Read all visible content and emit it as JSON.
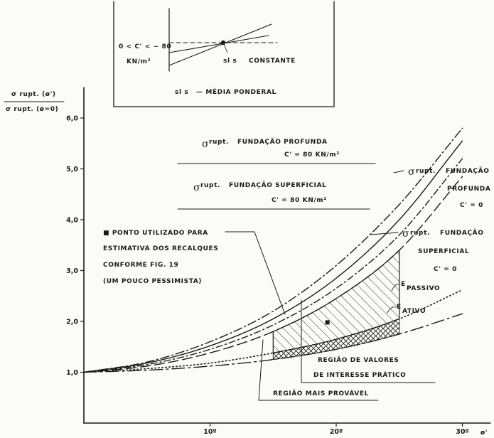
{
  "chart_data": {
    "type": "line",
    "title": "",
    "ylabel_num": "σ rupt. (ø')",
    "ylabel_den": "σ rupt. (ø=0)",
    "xlabel": "ø'",
    "xlim": [
      0,
      33
    ],
    "ylim": [
      0,
      6.5
    ],
    "x_ticks": [
      {
        "value": 10,
        "label": "10º"
      },
      {
        "value": 20,
        "label": "20º"
      },
      {
        "value": 30,
        "label": "30º"
      }
    ],
    "y_ticks": [
      {
        "value": 1,
        "label": "1,0"
      },
      {
        "value": 2,
        "label": "2,0"
      },
      {
        "value": 3,
        "label": "3,0"
      },
      {
        "value": 4,
        "label": "4,0"
      },
      {
        "value": 5,
        "label": "5,0"
      },
      {
        "value": 6,
        "label": "6,0"
      }
    ],
    "series": [
      {
        "key": "prof_c80",
        "style": "dashdot",
        "x": [
          0,
          5,
          10,
          15,
          20,
          25,
          30
        ],
        "y": [
          1.0,
          1.2,
          1.6,
          2.2,
          3.1,
          4.3,
          5.8
        ]
      },
      {
        "key": "prof_c0",
        "style": "solid",
        "x": [
          0,
          5,
          10,
          15,
          20,
          25,
          30
        ],
        "y": [
          1.0,
          1.18,
          1.52,
          2.05,
          2.85,
          4.0,
          5.55
        ]
      },
      {
        "key": "sup_c80",
        "style": "dashdot2",
        "x": [
          0,
          5,
          10,
          15,
          20,
          25,
          30
        ],
        "y": [
          1.0,
          1.15,
          1.45,
          1.93,
          2.65,
          3.7,
          5.2
        ]
      },
      {
        "key": "sup_c0",
        "style": "longdash",
        "x": [
          0,
          5,
          10,
          15,
          20,
          25,
          30
        ],
        "y": [
          1.0,
          1.12,
          1.38,
          1.8,
          2.45,
          3.4,
          4.85
        ]
      },
      {
        "key": "passivo",
        "style": "dotted",
        "x": [
          0,
          5,
          10,
          15,
          20,
          25,
          30
        ],
        "y": [
          1.0,
          1.07,
          1.18,
          1.38,
          1.65,
          2.05,
          2.62
        ]
      },
      {
        "key": "ativo",
        "style": "dashdotlong",
        "x": [
          0,
          5,
          10,
          15,
          20,
          25,
          30
        ],
        "y": [
          1.0,
          1.04,
          1.12,
          1.25,
          1.45,
          1.75,
          2.15
        ]
      }
    ],
    "hatched_region": {
      "x_from": 15,
      "x_to": 25
    },
    "crosshatched_region": {
      "x_from": 15,
      "x_to": 25
    },
    "point": {
      "x": 19.3,
      "y": 1.98
    }
  },
  "labels": {
    "prof_c80_a": "FUNDAÇÃO PROFUNDA",
    "prof_c80_b": "C' = 80 KN/m²",
    "sup_c80_a": "FUNDAÇÃO SUPERFICIAL",
    "sup_c80_b": "C' = 80 KN/m²",
    "prof_c0_a": "FUNDAÇÃO",
    "prof_c0_b": "PROFUNDA",
    "prof_c0_c": "C' = 0",
    "sup_c0_a": "FUNDAÇÃO",
    "sup_c0_b": "SUPERFICIAL",
    "sup_c0_c": "C' = 0",
    "sigma_sub": "rupt.",
    "passivo_e": "E",
    "passivo_sub": "PASSIVO",
    "ativo_e": "E",
    "ativo_sub": "ATIVO",
    "point_1": "■ PONTO UTILIZADO PARA",
    "point_2": "ESTIMATIVA DOS RECALQUES",
    "point_3": "CONFORME FIG. 19",
    "point_4": "(UM POUCO PESSIMISTA)",
    "regiao_interesse_1": "REGIÃO DE VALORES",
    "regiao_interesse_2": "DE INTERESSE PRÁTICO",
    "regiao_provavel": "REGIÃO MAIS PROVÁVEL"
  },
  "inset": {
    "range_label": "0 < C' < ~ 80",
    "unit_label": "KN/m²",
    "point_label": "sl s",
    "constant_label": "CONSTANTE",
    "legend_symbol": "sl s",
    "legend_text": "—  MÉDIA PONDERAL"
  }
}
